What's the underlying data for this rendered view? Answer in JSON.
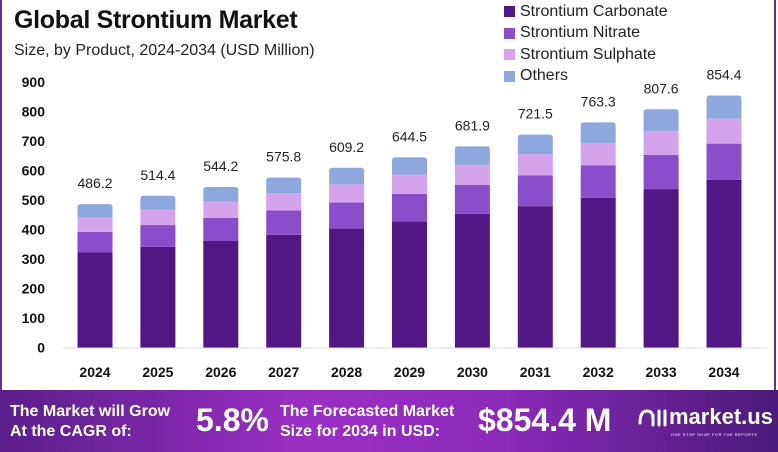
{
  "chart_data": {
    "type": "bar",
    "stacked": true,
    "title": "Global Strontium Market",
    "subtitle": "Size, by Product, 2024-2034 (USD Million)",
    "categories": [
      "2024",
      "2025",
      "2026",
      "2027",
      "2028",
      "2029",
      "2030",
      "2031",
      "2032",
      "2033",
      "2034"
    ],
    "series": [
      {
        "name": "Strontium Carbonate",
        "color": "#511885",
        "values": [
          322,
          341,
          361,
          382,
          404,
          428,
          453,
          479,
          507,
          537,
          568
        ]
      },
      {
        "name": "Strontium Nitrate",
        "color": "#8a4ecb",
        "values": [
          70,
          74,
          78,
          83,
          88,
          93,
          98,
          104,
          110,
          116,
          123
        ]
      },
      {
        "name": "Strontium Sulphate",
        "color": "#d5a3ec",
        "values": [
          49,
          52,
          55,
          58,
          61,
          65,
          68,
          72,
          76,
          80,
          85
        ]
      },
      {
        "name": "Others",
        "color": "#8ea8df",
        "values": [
          45.2,
          47.4,
          50.2,
          52.8,
          56.2,
          58.5,
          62.9,
          66.5,
          70.3,
          74.6,
          78.4
        ]
      }
    ],
    "totals": [
      "486.2",
      "514.4",
      "544.2",
      "575.8",
      "609.2",
      "644.5",
      "681.9",
      "721.5",
      "763.3",
      "807.6",
      "854.4"
    ],
    "yticks": [
      "0",
      "100",
      "200",
      "300",
      "400",
      "500",
      "600",
      "700",
      "800",
      "900"
    ],
    "ylim": [
      0,
      900
    ],
    "grid": false,
    "legend_position": "top-right"
  },
  "footer": {
    "cagr_label_1": "The Market will Grow",
    "cagr_label_2": "At the CAGR of:",
    "cagr_value": "5.8%",
    "forecast_label_1": "The Forecasted Market",
    "forecast_label_2": "Size for 2034 in USD:",
    "forecast_value": "$854.4 M",
    "logo_text": "market.us",
    "logo_tagline": "ONE STOP SHOP FOR THE REPORTS"
  }
}
